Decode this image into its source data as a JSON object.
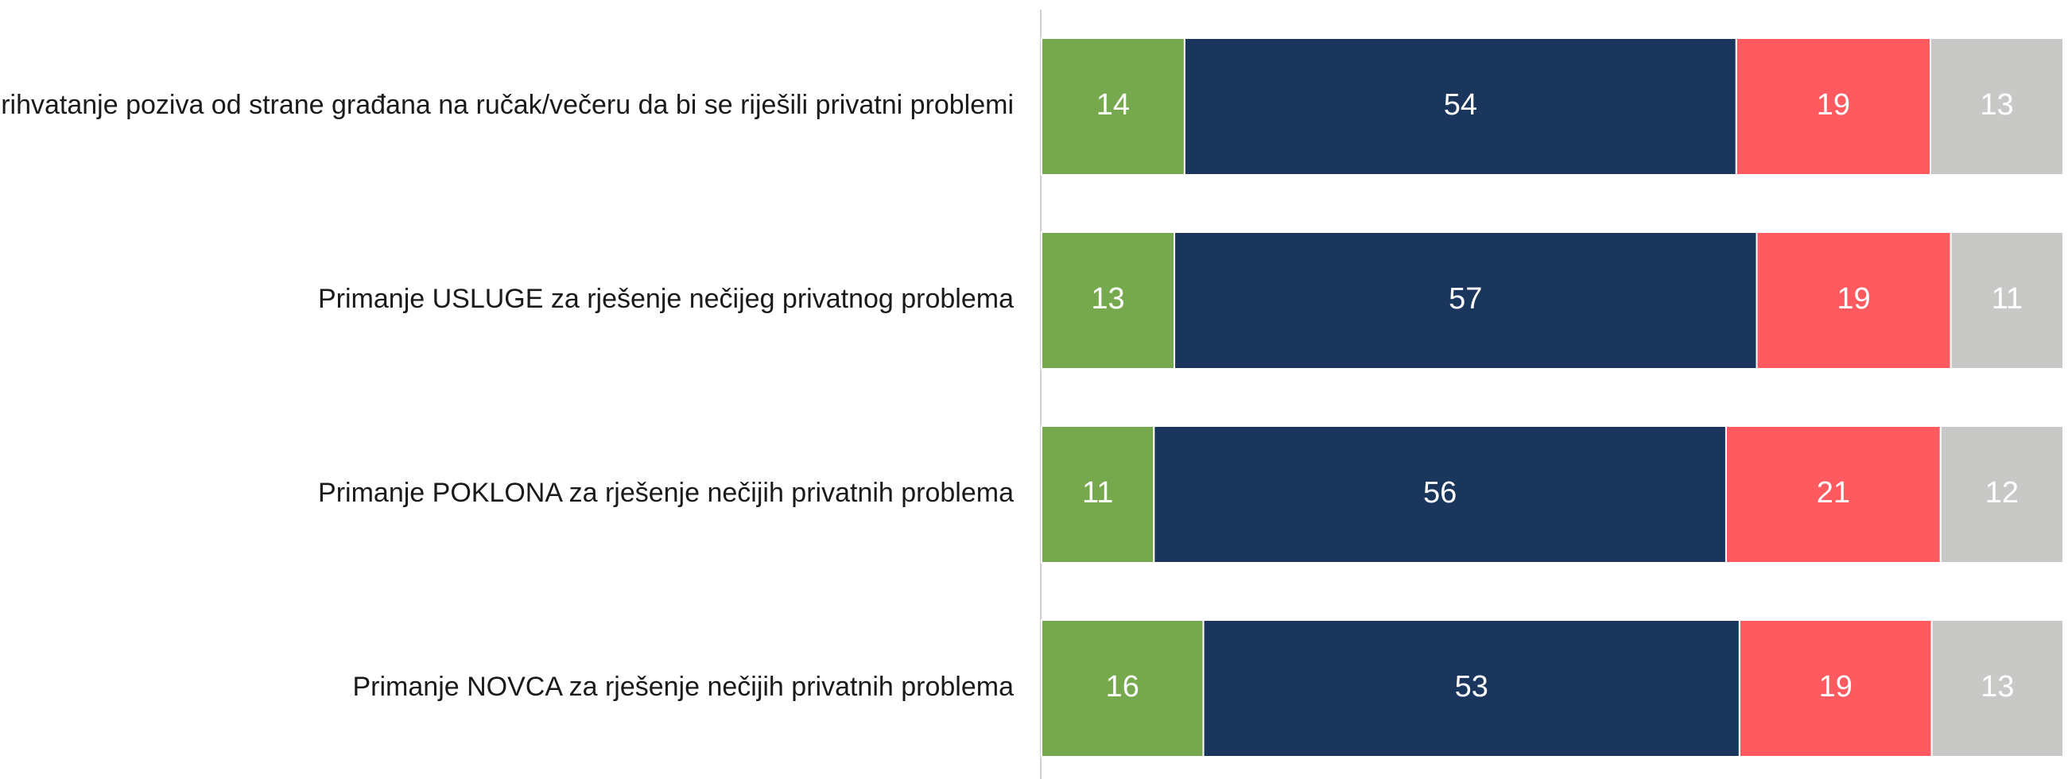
{
  "chart_data": {
    "type": "bar",
    "orientation": "horizontal",
    "stacked": true,
    "normalized": true,
    "categories": [
      "Prihvatanje poziva od strane građana na ručak/večeru da bi se riješili privatni problemi",
      "Primanje USLUGE za rješenje nečijeg privatnog problema",
      "Primanje POKLONA za rješenje nečijih privatnih problema",
      "Primanje NOVCA za rješenje nečijih privatnih problema"
    ],
    "series": [
      {
        "color": "#76a94e",
        "values": [
          14,
          13,
          11,
          16
        ]
      },
      {
        "color": "#1b365d",
        "values": [
          54,
          57,
          56,
          53
        ]
      },
      {
        "color": "#fe5a5f",
        "values": [
          19,
          19,
          21,
          19
        ]
      },
      {
        "color": "#c8c8c6",
        "values": [
          13,
          11,
          12,
          13
        ]
      }
    ],
    "data_labels": true,
    "legend": "none",
    "grid": false,
    "title": "",
    "xlabel": "",
    "ylabel": ""
  }
}
